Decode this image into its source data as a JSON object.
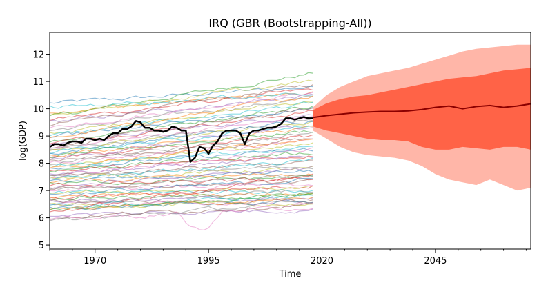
{
  "chart_data": {
    "type": "line",
    "title": "IRQ (GBR (Bootstrapping-All))",
    "xlabel": "Time",
    "ylabel": "log(GDP)",
    "xlim": [
      1960,
      2066
    ],
    "ylim": [
      4.85,
      12.8
    ],
    "x_ticks": [
      1970,
      1995,
      2020,
      2045
    ],
    "y_ticks": [
      5,
      6,
      7,
      8,
      9,
      10,
      11,
      12
    ],
    "grid": false,
    "legend": "none",
    "background_series": {
      "count": 70,
      "x_start": 1960,
      "x_end": 2018,
      "alpha": 0.5,
      "colors": [
        "#1f77b4",
        "#ff7f0e",
        "#2ca02c",
        "#d62728",
        "#9467bd",
        "#8c564b",
        "#e377c2",
        "#7f7f7f",
        "#bcbd22",
        "#17becf"
      ],
      "start_levels": [
        10.2,
        9.9,
        9.7,
        9.6,
        9.5,
        9.4,
        9.3,
        9.2,
        9.1,
        9.0,
        8.95,
        8.9,
        8.8,
        8.75,
        8.7,
        8.6,
        8.55,
        8.5,
        8.45,
        8.4,
        8.35,
        8.3,
        8.25,
        8.2,
        8.15,
        8.1,
        8.05,
        8.0,
        7.95,
        7.9,
        7.85,
        7.8,
        7.75,
        7.7,
        7.65,
        7.6,
        7.55,
        7.5,
        7.45,
        7.4,
        7.35,
        7.3,
        7.25,
        7.2,
        7.15,
        7.1,
        7.05,
        7.0,
        6.95,
        6.9,
        6.85,
        6.8,
        6.75,
        6.7,
        6.65,
        6.6,
        6.55,
        6.5,
        6.45,
        6.4,
        6.35,
        6.3,
        6.25,
        6.2,
        6.1,
        6.0,
        5.9,
        5.85,
        9.8,
        10.05
      ],
      "end_levels": [
        10.8,
        10.6,
        11.3,
        10.7,
        10.5,
        10.9,
        10.6,
        10.4,
        10.3,
        10.2,
        10.0,
        10.5,
        10.1,
        9.9,
        9.8,
        10.0,
        9.7,
        9.6,
        9.5,
        9.4,
        9.6,
        9.3,
        9.2,
        9.0,
        9.4,
        8.9,
        8.8,
        9.1,
        8.7,
        8.6,
        8.5,
        8.9,
        8.4,
        8.3,
        8.2,
        8.0,
        8.5,
        7.9,
        7.8,
        8.1,
        7.7,
        7.6,
        7.5,
        7.4,
        7.8,
        7.3,
        7.2,
        7.6,
        7.1,
        7.0,
        7.4,
        6.9,
        6.8,
        7.2,
        6.7,
        6.6,
        6.5,
        7.0,
        6.5,
        6.8,
        6.6,
        6.7,
        6.9,
        7.6,
        6.3,
        6.5,
        6.4,
        6.6,
        11.0,
        10.6
      ]
    },
    "observed_series": {
      "x": [
        1960,
        1961,
        1962,
        1963,
        1964,
        1965,
        1966,
        1967,
        1968,
        1969,
        1970,
        1971,
        1972,
        1973,
        1974,
        1975,
        1976,
        1977,
        1978,
        1979,
        1980,
        1981,
        1982,
        1983,
        1984,
        1985,
        1986,
        1987,
        1988,
        1989,
        1990,
        1991,
        1992,
        1993,
        1994,
        1995,
        1996,
        1997,
        1998,
        1999,
        2000,
        2001,
        2002,
        2003,
        2004,
        2005,
        2006,
        2007,
        2008,
        2009,
        2010,
        2011,
        2012,
        2013,
        2014,
        2015,
        2016,
        2017,
        2018
      ],
      "y": [
        8.6,
        8.7,
        8.7,
        8.65,
        8.75,
        8.8,
        8.8,
        8.75,
        8.9,
        8.9,
        8.85,
        8.9,
        8.85,
        9.0,
        9.1,
        9.1,
        9.25,
        9.25,
        9.35,
        9.55,
        9.5,
        9.3,
        9.3,
        9.2,
        9.2,
        9.15,
        9.2,
        9.35,
        9.3,
        9.2,
        9.2,
        8.05,
        8.2,
        8.6,
        8.55,
        8.35,
        8.65,
        8.8,
        9.1,
        9.2,
        9.2,
        9.2,
        9.1,
        8.7,
        9.1,
        9.2,
        9.2,
        9.25,
        9.3,
        9.3,
        9.35,
        9.45,
        9.65,
        9.65,
        9.6,
        9.65,
        9.7,
        9.65,
        9.65
      ],
      "color": "#000000"
    },
    "forecast": {
      "x": [
        2018,
        2021,
        2024,
        2027,
        2030,
        2033,
        2036,
        2039,
        2042,
        2045,
        2048,
        2051,
        2054,
        2057,
        2060,
        2063,
        2066
      ],
      "median": [
        9.68,
        9.75,
        9.8,
        9.85,
        9.88,
        9.9,
        9.9,
        9.92,
        9.97,
        10.05,
        10.1,
        10.0,
        10.08,
        10.12,
        10.05,
        10.1,
        10.18
      ],
      "inner_upper": [
        9.95,
        10.2,
        10.35,
        10.45,
        10.5,
        10.6,
        10.7,
        10.8,
        10.9,
        11.0,
        11.1,
        11.15,
        11.2,
        11.3,
        11.4,
        11.45,
        11.5
      ],
      "inner_lower": [
        9.35,
        9.2,
        9.1,
        9.0,
        8.9,
        8.85,
        8.85,
        8.8,
        8.6,
        8.5,
        8.5,
        8.6,
        8.55,
        8.5,
        8.6,
        8.6,
        8.5
      ],
      "outer_upper": [
        10.05,
        10.5,
        10.8,
        11.0,
        11.2,
        11.3,
        11.4,
        11.5,
        11.65,
        11.8,
        11.95,
        12.1,
        12.2,
        12.25,
        12.3,
        12.35,
        12.35
      ],
      "outer_lower": [
        9.2,
        8.9,
        8.6,
        8.4,
        8.3,
        8.25,
        8.2,
        8.1,
        7.9,
        7.6,
        7.4,
        7.3,
        7.2,
        7.4,
        7.2,
        7.0,
        7.1
      ],
      "median_color": "#8b0000",
      "inner_color": "#ff6347",
      "outer_color": "#ffb6a8"
    }
  }
}
